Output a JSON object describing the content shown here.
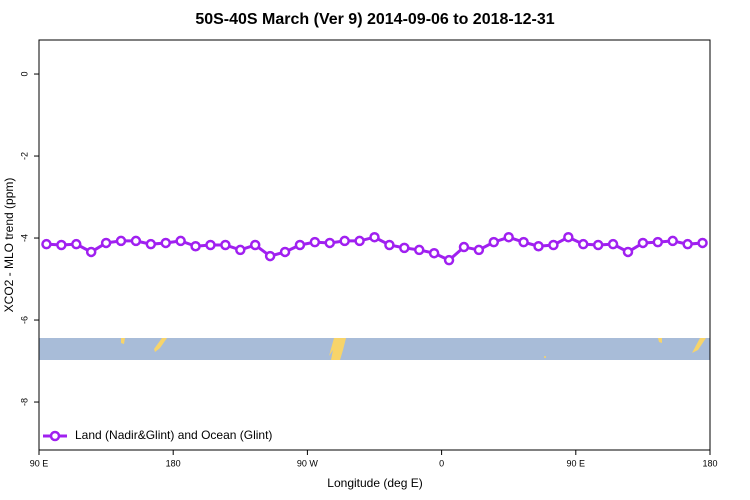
{
  "chart_data": {
    "type": "line",
    "title": "50S-40S March (Ver 9)   2014-09-06 to 2018-12-31",
    "x_label": "Longitude (deg E)",
    "y_label": "XCO2 - MLO trend (ppm)",
    "x": [
      95,
      105,
      115,
      125,
      135,
      145,
      155,
      165,
      175,
      185,
      195,
      205,
      215,
      225,
      235,
      245,
      255,
      265,
      275,
      285,
      295,
      305,
      315,
      325,
      335,
      345,
      355,
      365,
      375,
      385,
      395,
      405,
      415,
      425,
      435,
      445,
      455,
      465,
      475,
      485,
      495,
      505,
      515,
      525,
      535
    ],
    "series": [
      {
        "name": "Land (Nadir&Glint) and Ocean (Glint)",
        "color": "#a020f0",
        "values": [
          -4.15,
          -4.17,
          -4.15,
          -4.34,
          -4.12,
          -4.07,
          -4.07,
          -4.15,
          -4.12,
          -4.07,
          -4.2,
          -4.17,
          -4.17,
          -4.29,
          -4.17,
          -4.44,
          -4.34,
          -4.17,
          -4.1,
          -4.12,
          -4.07,
          -4.07,
          -3.98,
          -4.17,
          -4.24,
          -4.29,
          -4.37,
          -4.54,
          -4.22,
          -4.29,
          -4.1,
          -3.98,
          -4.1,
          -4.2,
          -4.17,
          -3.98,
          -4.15,
          -4.17,
          -4.15,
          -4.34,
          -4.12,
          -4.1,
          -4.07,
          -4.15,
          -4.12
        ]
      }
    ],
    "xlim": [
      90,
      540
    ],
    "xticks": [
      {
        "value": 90,
        "label": "90 E"
      },
      180,
      {
        "value": 270,
        "label": "90 W"
      },
      {
        "value": 360,
        "label": "0"
      },
      {
        "value": 450,
        "label": "90 E"
      },
      {
        "value": 540,
        "label": "180"
      }
    ],
    "ylim": [
      -9.17,
      0.83
    ],
    "yticks": [
      0,
      -2,
      -4,
      -6,
      -8
    ],
    "legend": "bottom-left"
  }
}
